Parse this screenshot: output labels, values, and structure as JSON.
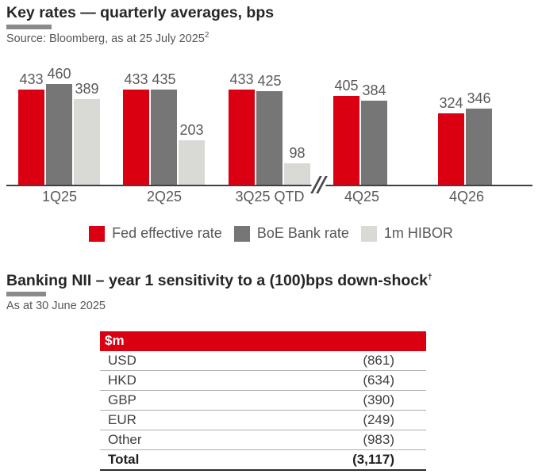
{
  "sections": {
    "rates": {
      "title": "Key rates — quarterly averages, bps",
      "source": "Source: Bloomberg, as at 25 July 2025",
      "source_superscript": "2"
    },
    "nii": {
      "title": "Banking NII – year 1 sensitivity to a (100)bps down-shock",
      "title_superscript": "†",
      "subtitle": "As at 30 June 2025",
      "table": {
        "type": "table",
        "header": "$m",
        "rows": [
          {
            "label": "USD",
            "value": "(861)"
          },
          {
            "label": "HKD",
            "value": "(634)"
          },
          {
            "label": "GBP",
            "value": "(390)"
          },
          {
            "label": "EUR",
            "value": "(249)"
          },
          {
            "label": "Other",
            "value": "(983)"
          }
        ],
        "total": {
          "label": "Total",
          "value": "(3,117)"
        }
      }
    }
  },
  "chart_data": {
    "type": "bar",
    "title": "Key rates — quarterly averages, bps",
    "categories": [
      "1Q25",
      "2Q25",
      "3Q25 QTD",
      "4Q25",
      "4Q26"
    ],
    "series": [
      {
        "name": "Fed effective rate",
        "color": "#DB0011",
        "values": [
          433,
          433,
          433,
          405,
          324
        ]
      },
      {
        "name": "BoE Bank rate",
        "color": "#767676",
        "values": [
          460,
          435,
          425,
          384,
          346
        ]
      },
      {
        "name": "1m HIBOR",
        "color": "#D9D9D6",
        "values": [
          389,
          203,
          98,
          null,
          null
        ]
      }
    ],
    "ylim": [
      0,
      460
    ],
    "value_labels": true,
    "grid": false,
    "legend_position": "bottom",
    "axis_break_after_category": "3Q25 QTD",
    "xlabel": "",
    "ylabel": "bps"
  },
  "colors": {
    "accent_red": "#DB0011",
    "dark_gray": "#767676",
    "light_gray": "#D9D9D6",
    "axis": "#404040",
    "keyline_gray": "#8a8a8a",
    "text_dark": "#262626",
    "text_gray": "#595959"
  }
}
